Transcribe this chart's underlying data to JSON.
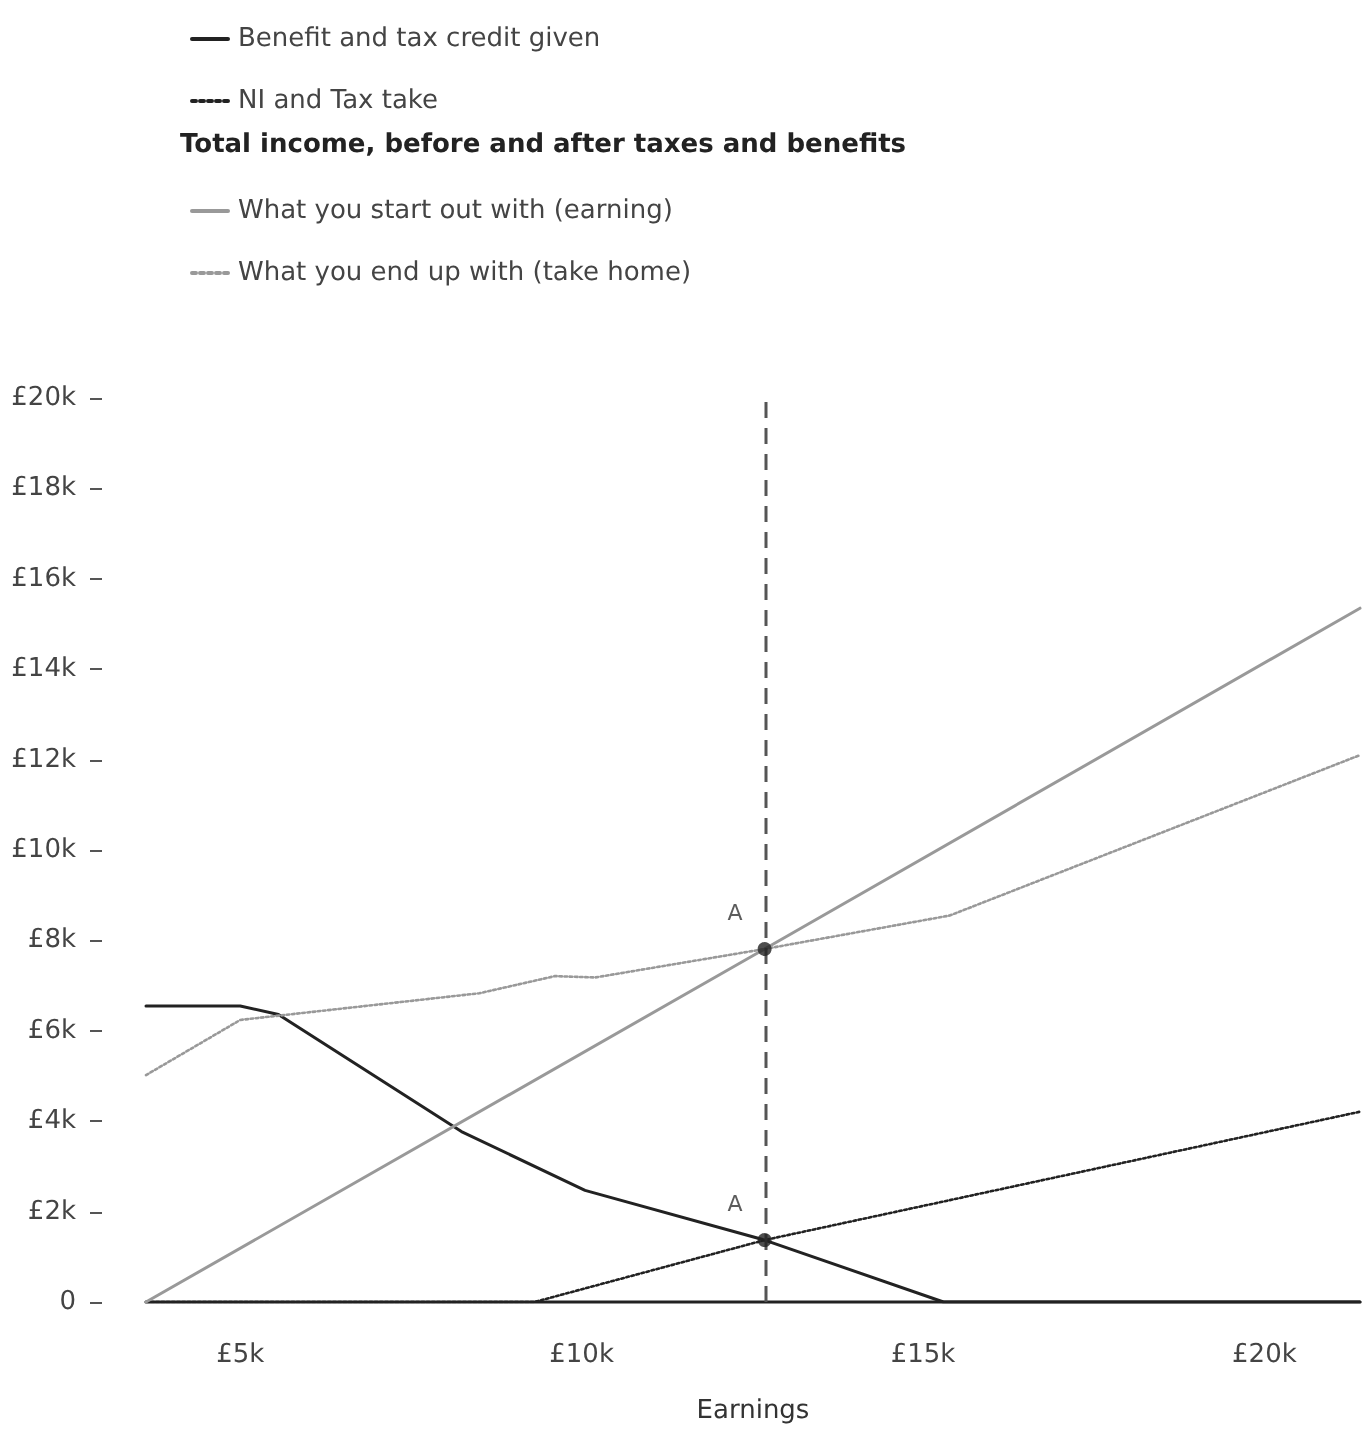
{
  "chart_data": {
    "type": "line",
    "xlabel": "Earnings",
    "legend_title": "Total income, before and after taxes and benefits",
    "legend": "top left",
    "grid": false,
    "marker": "none",
    "xlim": [
      3.62,
      21.4
    ],
    "xticks": [
      {
        "value": 5,
        "label": "£5k"
      },
      {
        "value": 10,
        "label": "£10k"
      },
      {
        "value": 15,
        "label": "£15k"
      },
      {
        "value": 20,
        "label": "£20k"
      }
    ],
    "ylim": [
      0,
      20
    ],
    "yticks": [
      0,
      {
        "value": 2,
        "label": "£2k"
      },
      {
        "value": 4,
        "label": "£4k"
      },
      {
        "value": 6,
        "label": "£6k"
      },
      {
        "value": 8,
        "label": "£8k"
      },
      {
        "value": 10,
        "label": "£10k"
      },
      {
        "value": 12,
        "label": "£12k"
      },
      {
        "value": 14,
        "label": "£14k"
      },
      {
        "value": 16,
        "label": "£16k"
      },
      {
        "value": 18,
        "label": "£18k"
      },
      {
        "value": 20,
        "label": "£20k"
      }
    ],
    "series": [
      {
        "name": "Benefit and tax credit given",
        "color": "#222222",
        "line_style": "solid",
        "x": [
          3.62,
          5.0,
          5.56,
          8.24,
          10.05,
          12.68,
          15.3,
          21.4
        ],
        "values": [
          6.55,
          6.55,
          6.36,
          3.77,
          2.47,
          1.37,
          0,
          0
        ]
      },
      {
        "name": "NI and Tax take",
        "color": "#222222",
        "line_style": "dotted",
        "x": [
          3.62,
          9.31,
          12.68,
          21.4
        ],
        "values": [
          0,
          0,
          1.37,
          4.21
        ]
      },
      {
        "name": "What you start out with (earning)",
        "color": "#999999",
        "line_style": "solid",
        "x": [
          3.62,
          12.68,
          21.4
        ],
        "values": [
          0,
          7.81,
          15.35
        ]
      },
      {
        "name": "What you end up with (take home)",
        "color": "#999999",
        "line_style": "dotted",
        "x": [
          3.62,
          5.0,
          8.5,
          9.61,
          10.2,
          12.68,
          15.39,
          21.4
        ],
        "values": [
          5.02,
          6.24,
          6.83,
          7.21,
          7.18,
          7.81,
          8.55,
          12.1
        ]
      }
    ],
    "ref_lines": [
      {
        "axis": "x",
        "value": 12.68,
        "color": "#555555",
        "line_style": "dashed"
      }
    ],
    "annotations": [
      {
        "text": "A",
        "x": 12.68,
        "y": 7.81
      },
      {
        "text": "A",
        "x": 12.68,
        "y": 1.37
      }
    ]
  }
}
